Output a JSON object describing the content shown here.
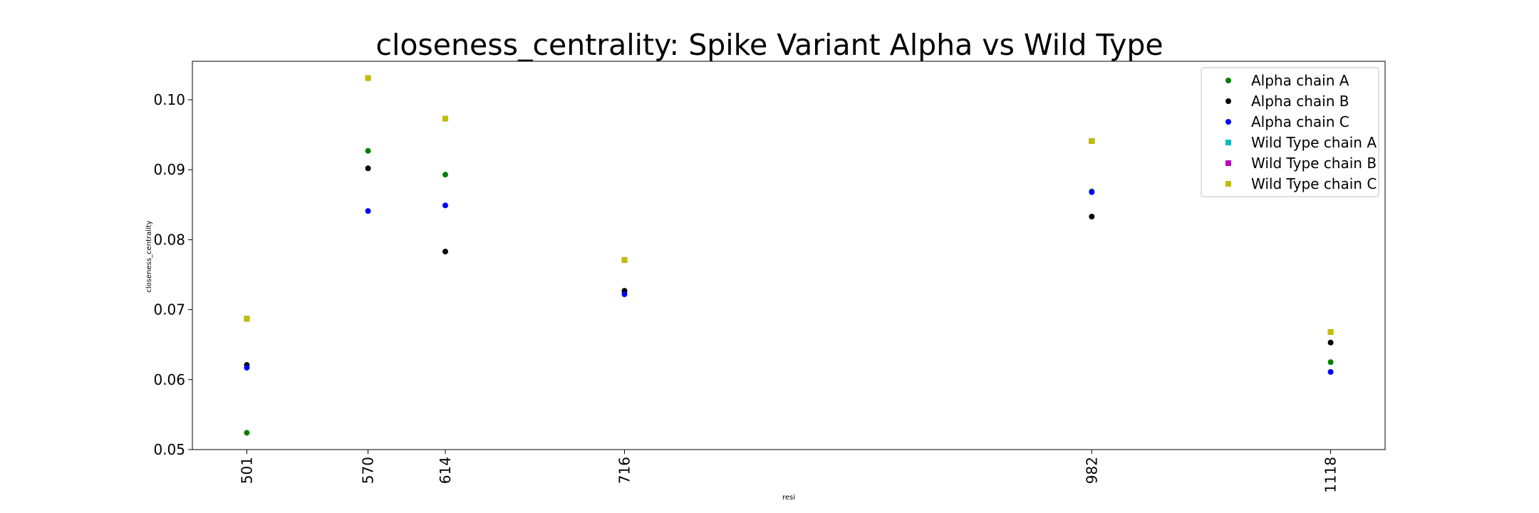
{
  "chart_data": {
    "type": "scatter",
    "title": "closeness_centrality: Spike Variant Alpha vs Wild Type",
    "xlabel": "resi",
    "ylabel": "closeness_centrality",
    "x_ticks": [
      "501",
      "570",
      "614",
      "716",
      "982",
      "1118"
    ],
    "y_ticks": [
      "0.05",
      "0.06",
      "0.07",
      "0.08",
      "0.09",
      "0.10"
    ],
    "x": [
      501,
      570,
      614,
      716,
      982,
      1118
    ],
    "xlim": [
      470,
      1149
    ],
    "ylim": [
      0.05,
      0.1055
    ],
    "grid": false,
    "legend_position": "top-right",
    "series": [
      {
        "name": "Alpha chain A",
        "color": "#008000",
        "marker": "circle",
        "values": [
          0.0524,
          0.0927,
          0.0893,
          0.0726,
          0.0869,
          0.0625
        ]
      },
      {
        "name": "Alpha chain B",
        "color": "#000000",
        "marker": "circle",
        "values": [
          0.0621,
          0.0902,
          0.0783,
          0.0727,
          0.0833,
          0.0653
        ]
      },
      {
        "name": "Alpha chain C",
        "color": "#0000ff",
        "marker": "circle",
        "values": [
          0.0617,
          0.0841,
          0.0849,
          0.0722,
          0.0868,
          0.0611
        ]
      },
      {
        "name": "Wild Type chain A",
        "color": "#00bfbf",
        "marker": "square",
        "values": [
          0.0687,
          0.1031,
          0.0973,
          0.0771,
          0.0941,
          0.0668
        ]
      },
      {
        "name": "Wild Type chain B",
        "color": "#bf00bf",
        "marker": "square",
        "values": [
          0.0687,
          0.1031,
          0.0973,
          0.0771,
          0.0941,
          0.0668
        ]
      },
      {
        "name": "Wild Type chain C",
        "color": "#bfbf00",
        "marker": "square",
        "values": [
          0.0687,
          0.1031,
          0.0973,
          0.0771,
          0.0941,
          0.0668
        ]
      }
    ]
  }
}
